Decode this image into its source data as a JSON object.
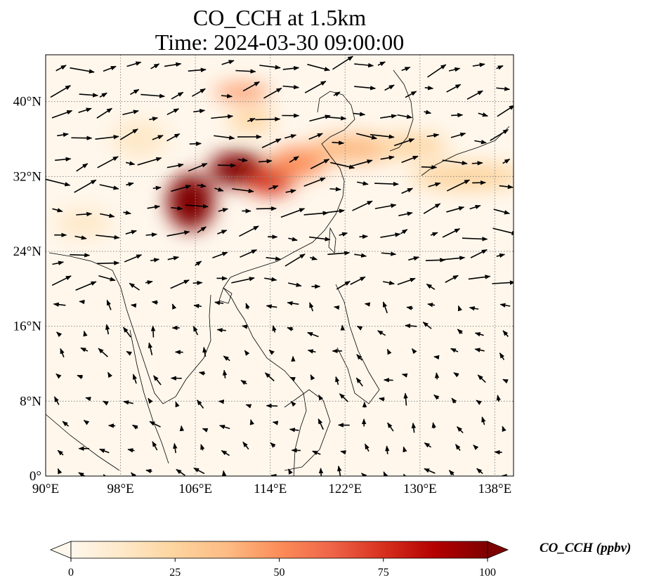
{
  "title": {
    "line1": "CO_CCH at 1.5km",
    "line2": "Time: 2024-03-30 09:00:00"
  },
  "map": {
    "lon_range": [
      90,
      140
    ],
    "lat_range": [
      0,
      45
    ],
    "lon_ticks": [
      {
        "value": 90,
        "label": "90°E"
      },
      {
        "value": 98,
        "label": "98°E"
      },
      {
        "value": 106,
        "label": "106°E"
      },
      {
        "value": 114,
        "label": "114°E"
      },
      {
        "value": 122,
        "label": "122°E"
      },
      {
        "value": 130,
        "label": "130°E"
      },
      {
        "value": 138,
        "label": "138°E"
      }
    ],
    "lat_ticks": [
      {
        "value": 0,
        "label": "0°"
      },
      {
        "value": 8,
        "label": "8°N"
      },
      {
        "value": 16,
        "label": "16°N"
      },
      {
        "value": 24,
        "label": "24°N"
      },
      {
        "value": 32,
        "label": "32°N"
      },
      {
        "value": 40,
        "label": "40°N"
      }
    ],
    "gridlines": true,
    "plumes": [
      {
        "lon": 105.5,
        "lat": 29.3,
        "value": 100
      },
      {
        "lon": 110.5,
        "lat": 32.8,
        "value": 95
      },
      {
        "lon": 114,
        "lat": 31.5,
        "value": 70
      },
      {
        "lon": 117,
        "lat": 33.5,
        "value": 45
      },
      {
        "lon": 123,
        "lat": 35,
        "value": 35
      },
      {
        "lon": 129,
        "lat": 35.3,
        "value": 30
      },
      {
        "lon": 135,
        "lat": 32,
        "value": 20
      },
      {
        "lon": 112,
        "lat": 38,
        "value": 20
      },
      {
        "lon": 111,
        "lat": 41,
        "value": 45
      },
      {
        "lon": 94,
        "lat": 27,
        "value": 15
      },
      {
        "lon": 100,
        "lat": 36,
        "value": 10
      }
    ]
  },
  "colorbar": {
    "ticks": [
      {
        "value": 0,
        "label": "0"
      },
      {
        "value": 25,
        "label": "25"
      },
      {
        "value": 50,
        "label": "50"
      },
      {
        "value": 75,
        "label": "75"
      },
      {
        "value": 100,
        "label": "100"
      }
    ],
    "range": [
      0,
      100
    ],
    "extend": "both",
    "label": "CO_CCH (ppbv)",
    "colors": [
      "#fff7ec",
      "#fee8c8",
      "#fdd49e",
      "#fdbb84",
      "#fc8d59",
      "#ef6548",
      "#d7301f",
      "#b30000",
      "#7f0000"
    ]
  }
}
